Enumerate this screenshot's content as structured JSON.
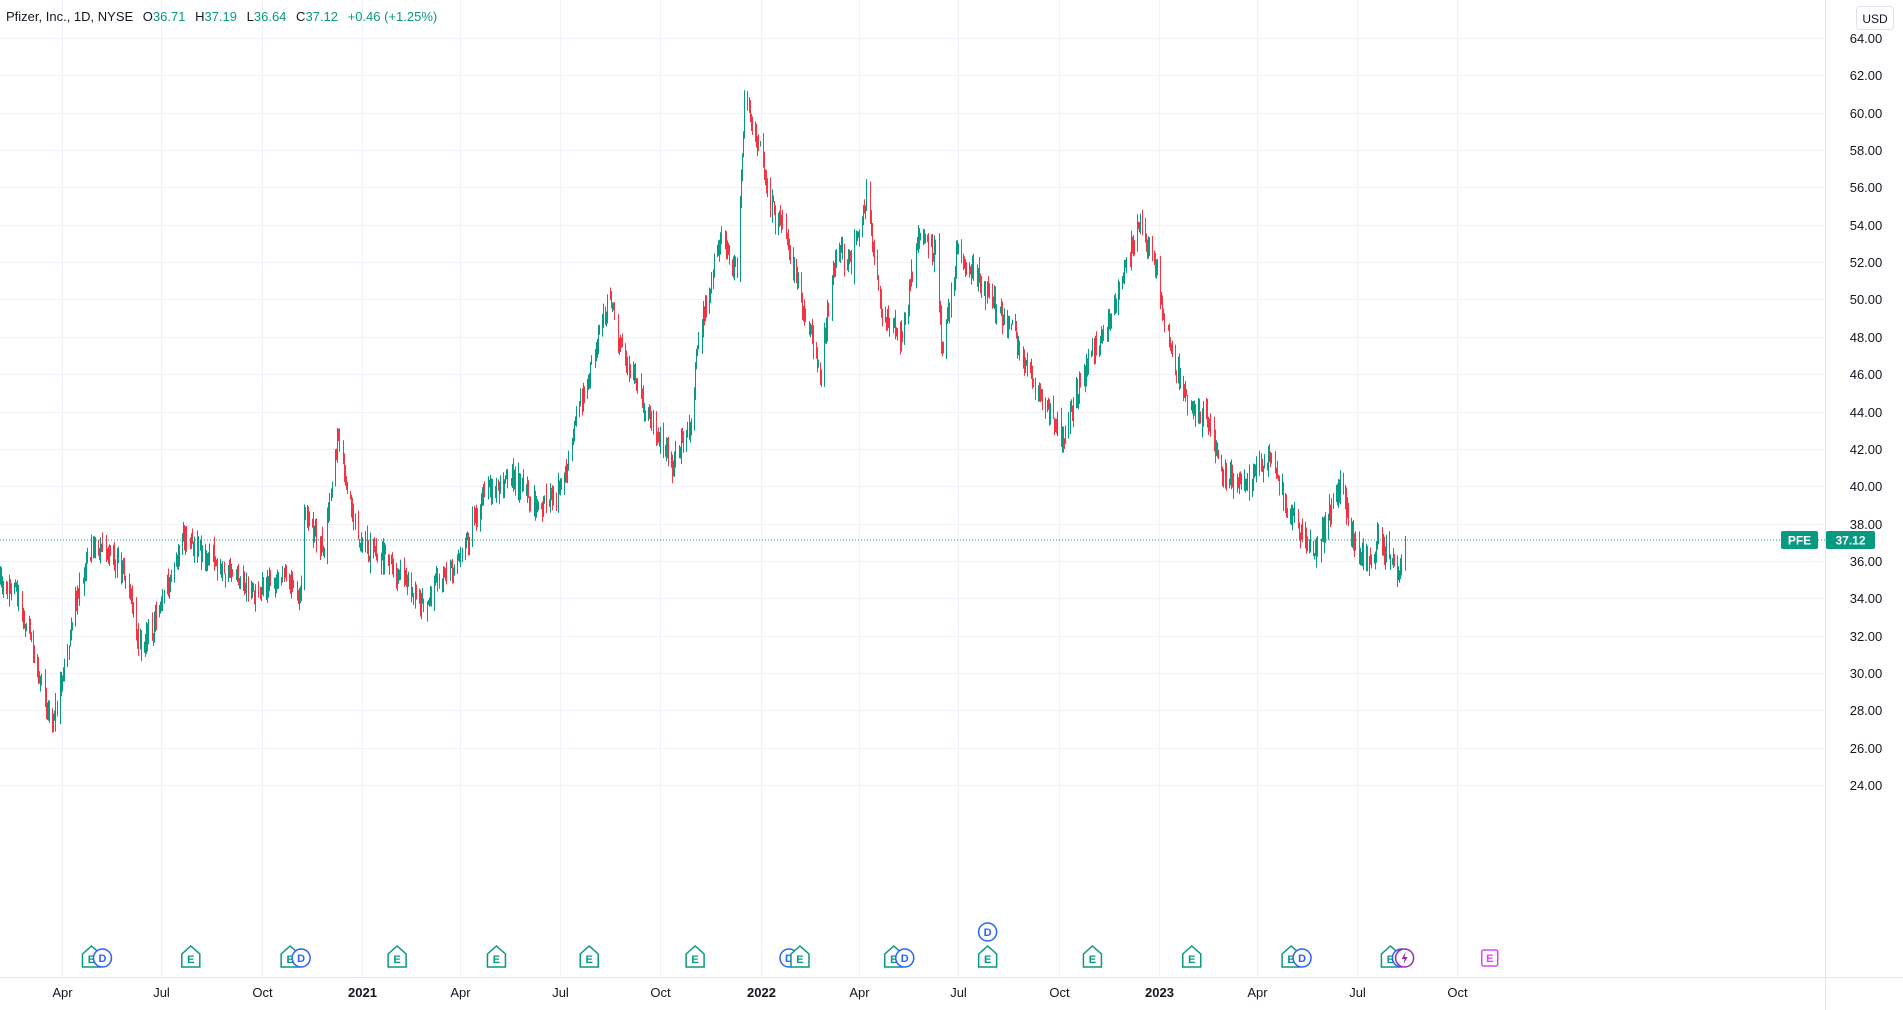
{
  "header": {
    "title": "Pfizer, Inc., 1D, NYSE",
    "open_label": "O",
    "open": "36.71",
    "high_label": "H",
    "high": "37.19",
    "low_label": "L",
    "low": "36.64",
    "close_label": "C",
    "close": "37.12",
    "change": "+0.46 (+1.25%)"
  },
  "currency": "USD",
  "price_tag": {
    "symbol": "PFE",
    "value": "37.12"
  },
  "colors": {
    "up": "#089981",
    "down": "#f23645",
    "grid": "#f0f3fa",
    "earnings": "#089981",
    "earnings_future": "#e040fb",
    "dividend": "#2962ff",
    "split": "#9c27b0",
    "price_line": "#089981"
  },
  "chart_data": {
    "type": "candlestick",
    "title": "Pfizer, Inc., 1D, NYSE",
    "ylim": [
      23,
      65
    ],
    "yticks": [
      "64.00",
      "62.00",
      "60.00",
      "58.00",
      "56.00",
      "54.00",
      "52.00",
      "50.00",
      "48.00",
      "46.00",
      "44.00",
      "42.00",
      "40.00",
      "38.00",
      "36.00",
      "34.00",
      "32.00",
      "30.00",
      "28.00",
      "26.00",
      "24.00"
    ],
    "xticks": [
      {
        "label": "Apr",
        "date": "2020-04-01"
      },
      {
        "label": "Jul",
        "date": "2020-07-01"
      },
      {
        "label": "Oct",
        "date": "2020-10-01"
      },
      {
        "label": "2021",
        "date": "2021-01-01",
        "year": true
      },
      {
        "label": "Apr",
        "date": "2021-04-01"
      },
      {
        "label": "Jul",
        "date": "2021-07-01"
      },
      {
        "label": "Oct",
        "date": "2021-10-01"
      },
      {
        "label": "2022",
        "date": "2022-01-01",
        "year": true
      },
      {
        "label": "Apr",
        "date": "2022-04-01"
      },
      {
        "label": "Jul",
        "date": "2022-07-01"
      },
      {
        "label": "Oct",
        "date": "2022-10-01"
      },
      {
        "label": "2023",
        "date": "2023-01-01",
        "year": true
      },
      {
        "label": "Apr",
        "date": "2023-04-01"
      },
      {
        "label": "Jul",
        "date": "2023-07-01"
      },
      {
        "label": "Oct",
        "date": "2023-10-01"
      }
    ],
    "close_path": [
      {
        "date": "2020-01-02",
        "close": 36.6
      },
      {
        "date": "2020-02-20",
        "close": 34.2
      },
      {
        "date": "2020-03-23",
        "close": 27.0
      },
      {
        "date": "2020-04-15",
        "close": 34.5
      },
      {
        "date": "2020-05-01",
        "close": 37.0
      },
      {
        "date": "2020-05-29",
        "close": 35.5
      },
      {
        "date": "2020-06-12",
        "close": 31.0
      },
      {
        "date": "2020-07-01",
        "close": 33.5
      },
      {
        "date": "2020-07-22",
        "close": 37.3
      },
      {
        "date": "2020-08-20",
        "close": 35.9
      },
      {
        "date": "2020-09-25",
        "close": 34.2
      },
      {
        "date": "2020-10-20",
        "close": 35.5
      },
      {
        "date": "2020-11-05",
        "close": 34.0
      },
      {
        "date": "2020-11-09",
        "close": 38.5
      },
      {
        "date": "2020-11-27",
        "close": 36.5
      },
      {
        "date": "2020-12-09",
        "close": 42.5
      },
      {
        "date": "2020-12-28",
        "close": 37.0
      },
      {
        "date": "2021-01-25",
        "close": 36.0
      },
      {
        "date": "2021-02-24",
        "close": 33.7
      },
      {
        "date": "2021-03-31",
        "close": 36.2
      },
      {
        "date": "2021-04-23",
        "close": 39.5
      },
      {
        "date": "2021-05-20",
        "close": 40.5
      },
      {
        "date": "2021-06-10",
        "close": 38.8
      },
      {
        "date": "2021-07-01",
        "close": 39.8
      },
      {
        "date": "2021-07-23",
        "close": 45.0
      },
      {
        "date": "2021-08-16",
        "close": 50.5
      },
      {
        "date": "2021-08-25",
        "close": 47.5
      },
      {
        "date": "2021-09-15",
        "close": 44.5
      },
      {
        "date": "2021-10-12",
        "close": 41.3
      },
      {
        "date": "2021-10-29",
        "close": 43.5
      },
      {
        "date": "2021-11-05",
        "close": 48.0
      },
      {
        "date": "2021-11-26",
        "close": 53.5
      },
      {
        "date": "2021-12-10",
        "close": 51.5
      },
      {
        "date": "2021-12-17",
        "close": 60.5
      },
      {
        "date": "2021-12-30",
        "close": 58.5
      },
      {
        "date": "2022-01-10",
        "close": 55.0
      },
      {
        "date": "2022-01-25",
        "close": 53.5
      },
      {
        "date": "2022-02-08",
        "close": 49.5
      },
      {
        "date": "2022-02-24",
        "close": 46.0
      },
      {
        "date": "2022-03-10",
        "close": 52.5
      },
      {
        "date": "2022-03-25",
        "close": 52.0
      },
      {
        "date": "2022-04-08",
        "close": 55.5
      },
      {
        "date": "2022-04-22",
        "close": 49.0
      },
      {
        "date": "2022-05-10",
        "close": 48.0
      },
      {
        "date": "2022-05-26",
        "close": 53.5
      },
      {
        "date": "2022-06-10",
        "close": 52.5
      },
      {
        "date": "2022-06-16",
        "close": 47.0
      },
      {
        "date": "2022-06-30",
        "close": 52.5
      },
      {
        "date": "2022-07-15",
        "close": 51.5
      },
      {
        "date": "2022-08-01",
        "close": 50.0
      },
      {
        "date": "2022-08-22",
        "close": 48.0
      },
      {
        "date": "2022-09-08",
        "close": 45.5
      },
      {
        "date": "2022-09-22",
        "close": 44.0
      },
      {
        "date": "2022-10-05",
        "close": 42.5
      },
      {
        "date": "2022-10-20",
        "close": 45.5
      },
      {
        "date": "2022-11-01",
        "close": 47.0
      },
      {
        "date": "2022-11-15",
        "close": 48.5
      },
      {
        "date": "2022-11-28",
        "close": 51.0
      },
      {
        "date": "2022-12-13",
        "close": 54.0
      },
      {
        "date": "2022-12-30",
        "close": 51.2
      },
      {
        "date": "2023-01-12",
        "close": 47.0
      },
      {
        "date": "2023-01-31",
        "close": 44.2
      },
      {
        "date": "2023-02-15",
        "close": 43.5
      },
      {
        "date": "2023-03-01",
        "close": 40.5
      },
      {
        "date": "2023-03-22",
        "close": 40.0
      },
      {
        "date": "2023-04-12",
        "close": 41.5
      },
      {
        "date": "2023-05-01",
        "close": 38.5
      },
      {
        "date": "2023-05-25",
        "close": 36.5
      },
      {
        "date": "2023-06-08",
        "close": 39.0
      },
      {
        "date": "2023-06-16",
        "close": 40.0
      },
      {
        "date": "2023-06-30",
        "close": 36.5
      },
      {
        "date": "2023-07-14",
        "close": 36.0
      },
      {
        "date": "2023-07-21",
        "close": 37.3
      },
      {
        "date": "2023-08-01",
        "close": 36.2
      },
      {
        "date": "2023-08-08",
        "close": 35.2
      },
      {
        "date": "2023-08-14",
        "close": 37.12
      }
    ],
    "last_close": 37.12,
    "events": [
      {
        "date": "2020-04-28",
        "marks": [
          "E",
          "D"
        ]
      },
      {
        "date": "2020-07-28",
        "marks": [
          "E"
        ]
      },
      {
        "date": "2020-10-27",
        "marks": [
          "E",
          "D"
        ]
      },
      {
        "date": "2021-02-02",
        "marks": [
          "E"
        ]
      },
      {
        "date": "2021-05-04",
        "marks": [
          "E"
        ]
      },
      {
        "date": "2021-07-28",
        "marks": [
          "E"
        ]
      },
      {
        "date": "2021-11-02",
        "marks": [
          "E"
        ]
      },
      {
        "date": "2022-01-27",
        "marks": [
          "D",
          "E"
        ]
      },
      {
        "date": "2022-05-03",
        "marks": [
          "E",
          "D"
        ]
      },
      {
        "date": "2022-07-28",
        "marks": [
          "E"
        ],
        "stacked": [
          "D"
        ]
      },
      {
        "date": "2022-11-01",
        "marks": [
          "E"
        ]
      },
      {
        "date": "2023-01-31",
        "marks": [
          "E"
        ]
      },
      {
        "date": "2023-05-02",
        "marks": [
          "E",
          "D"
        ]
      },
      {
        "date": "2023-08-01",
        "marks": [
          "E",
          "D"
        ]
      },
      {
        "date": "2023-08-14",
        "marks": [
          "S"
        ]
      },
      {
        "date": "2023-10-31",
        "marks": [
          "E"
        ],
        "future": true
      }
    ]
  }
}
